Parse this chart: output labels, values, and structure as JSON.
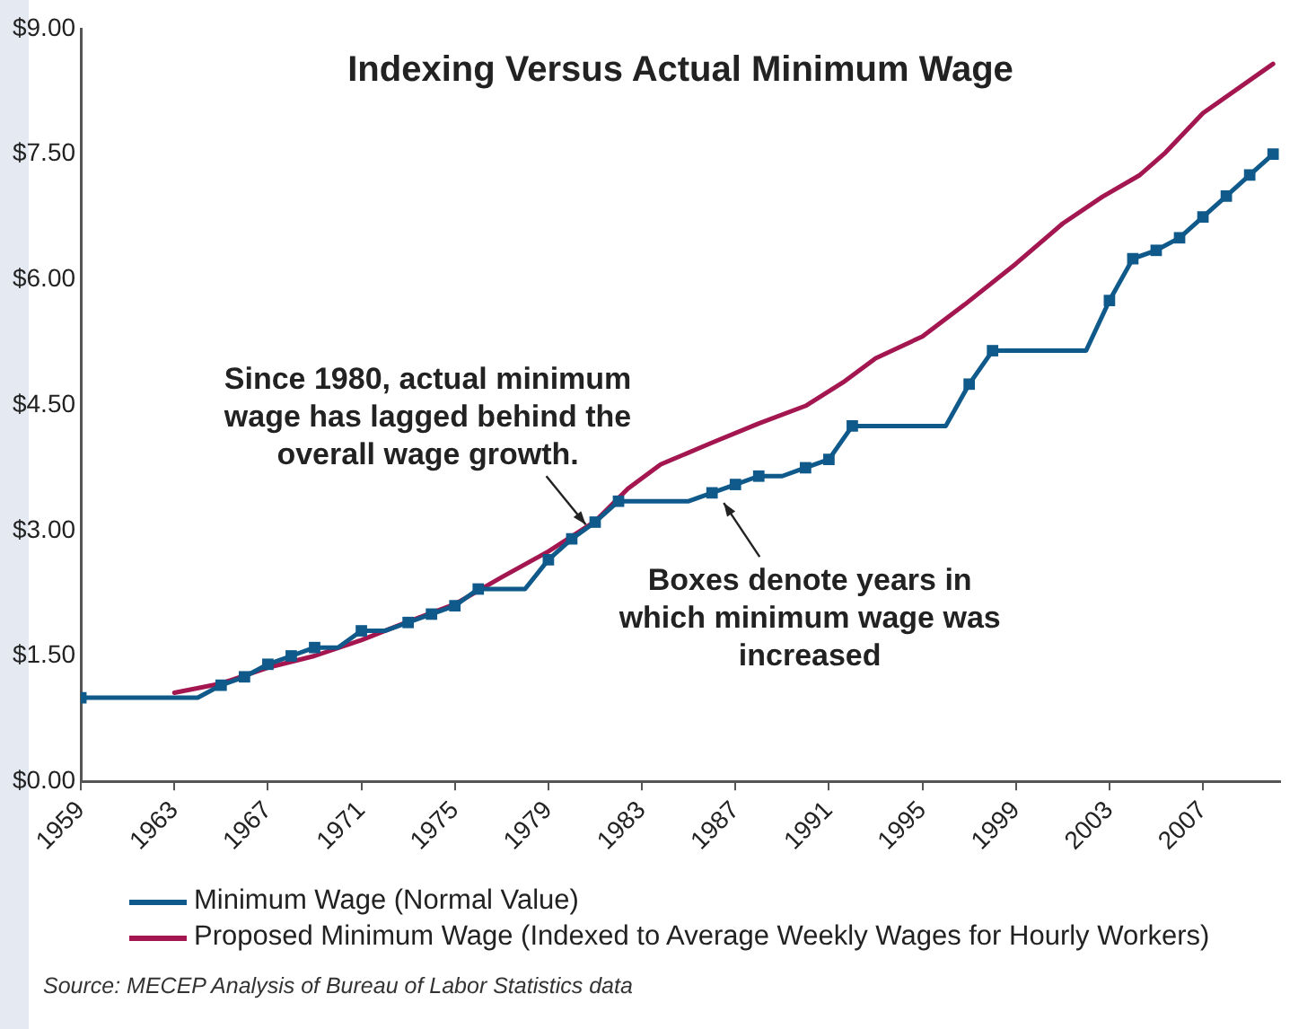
{
  "chart_data": {
    "type": "line",
    "title": "Indexing Versus Actual Minimum Wage",
    "xlim": [
      1959,
      2010.3
    ],
    "xticks": [
      1959,
      1963,
      1967,
      1971,
      1975,
      1979,
      1983,
      1987,
      1991,
      1995,
      1999,
      2003,
      2007
    ],
    "ylim": [
      0,
      9
    ],
    "yticks": [
      {
        "value": 0,
        "label": "$0.00"
      },
      {
        "value": 1.5,
        "label": "$1.50"
      },
      {
        "value": 3,
        "label": "$3.00"
      },
      {
        "value": 4.5,
        "label": "$4.50"
      },
      {
        "value": 6,
        "label": "$6.00"
      },
      {
        "value": 7.5,
        "label": "$7.50"
      },
      {
        "value": 9,
        "label": "$9.00"
      }
    ],
    "grid": false,
    "legend": "bottom",
    "line_style": "solid",
    "series": [
      {
        "name": "Minimum Wage (Normal Value)",
        "color": "#0f5a8a",
        "marker": "square",
        "x": [
          1959,
          1960,
          1961,
          1962,
          1963,
          1964,
          1965,
          1966,
          1967,
          1968,
          1969,
          1970,
          1971,
          1972,
          1973,
          1974,
          1975,
          1976,
          1977,
          1978,
          1979,
          1980,
          1981,
          1982,
          1983,
          1984,
          1985,
          1986,
          1987,
          1988,
          1989,
          1990,
          1991,
          1992,
          1993,
          1994,
          1995,
          1996,
          1997,
          1998,
          1999,
          2000,
          2001,
          2002,
          2003,
          2004,
          2005,
          2006,
          2007,
          2008,
          2009,
          2010
        ],
        "values": [
          1.0,
          1.0,
          1.0,
          1.0,
          1.0,
          1.0,
          1.15,
          1.25,
          1.4,
          1.5,
          1.6,
          1.6,
          1.8,
          1.8,
          1.9,
          2.0,
          2.1,
          2.3,
          2.3,
          2.3,
          2.65,
          2.9,
          3.1,
          3.35,
          3.35,
          3.35,
          3.35,
          3.45,
          3.55,
          3.65,
          3.65,
          3.75,
          3.85,
          4.25,
          4.25,
          4.25,
          4.25,
          4.25,
          4.75,
          5.15,
          5.15,
          5.15,
          5.15,
          5.15,
          5.75,
          6.25,
          6.35,
          6.5,
          6.75,
          7.0,
          7.25,
          7.5
        ]
      },
      {
        "name": "Proposed Minimum Wage (Indexed to Average Weekly Wages for Hourly Workers)",
        "color": "#a3164f",
        "marker": "none",
        "x": [
          1963,
          1965,
          1967,
          1969,
          1971,
          1973,
          1975,
          1977,
          1979,
          1981,
          1982.4,
          1983.8,
          1986,
          1988,
          1990,
          1991.6,
          1993,
          1995,
          1996.8,
          1999,
          2001,
          2002.7,
          2004.3,
          2005.4,
          2007,
          2010
        ],
        "values": [
          1.06,
          1.17,
          1.36,
          1.5,
          1.69,
          1.91,
          2.12,
          2.44,
          2.75,
          3.11,
          3.5,
          3.79,
          4.05,
          4.28,
          4.49,
          4.77,
          5.06,
          5.32,
          5.7,
          6.19,
          6.67,
          6.99,
          7.25,
          7.52,
          7.99,
          8.58
        ]
      }
    ],
    "annotations": [
      {
        "text": "Since 1980, actual minimum wage has lagged behind the overall wage growth.",
        "x": 1980.6,
        "y": 3.07
      },
      {
        "text": "Boxes denote years in which minimum wage was increased",
        "x": 1986.5,
        "y": 3.33
      },
      "Source: MECEP Analysis of Bureau of Labor Statistics data"
    ]
  }
}
